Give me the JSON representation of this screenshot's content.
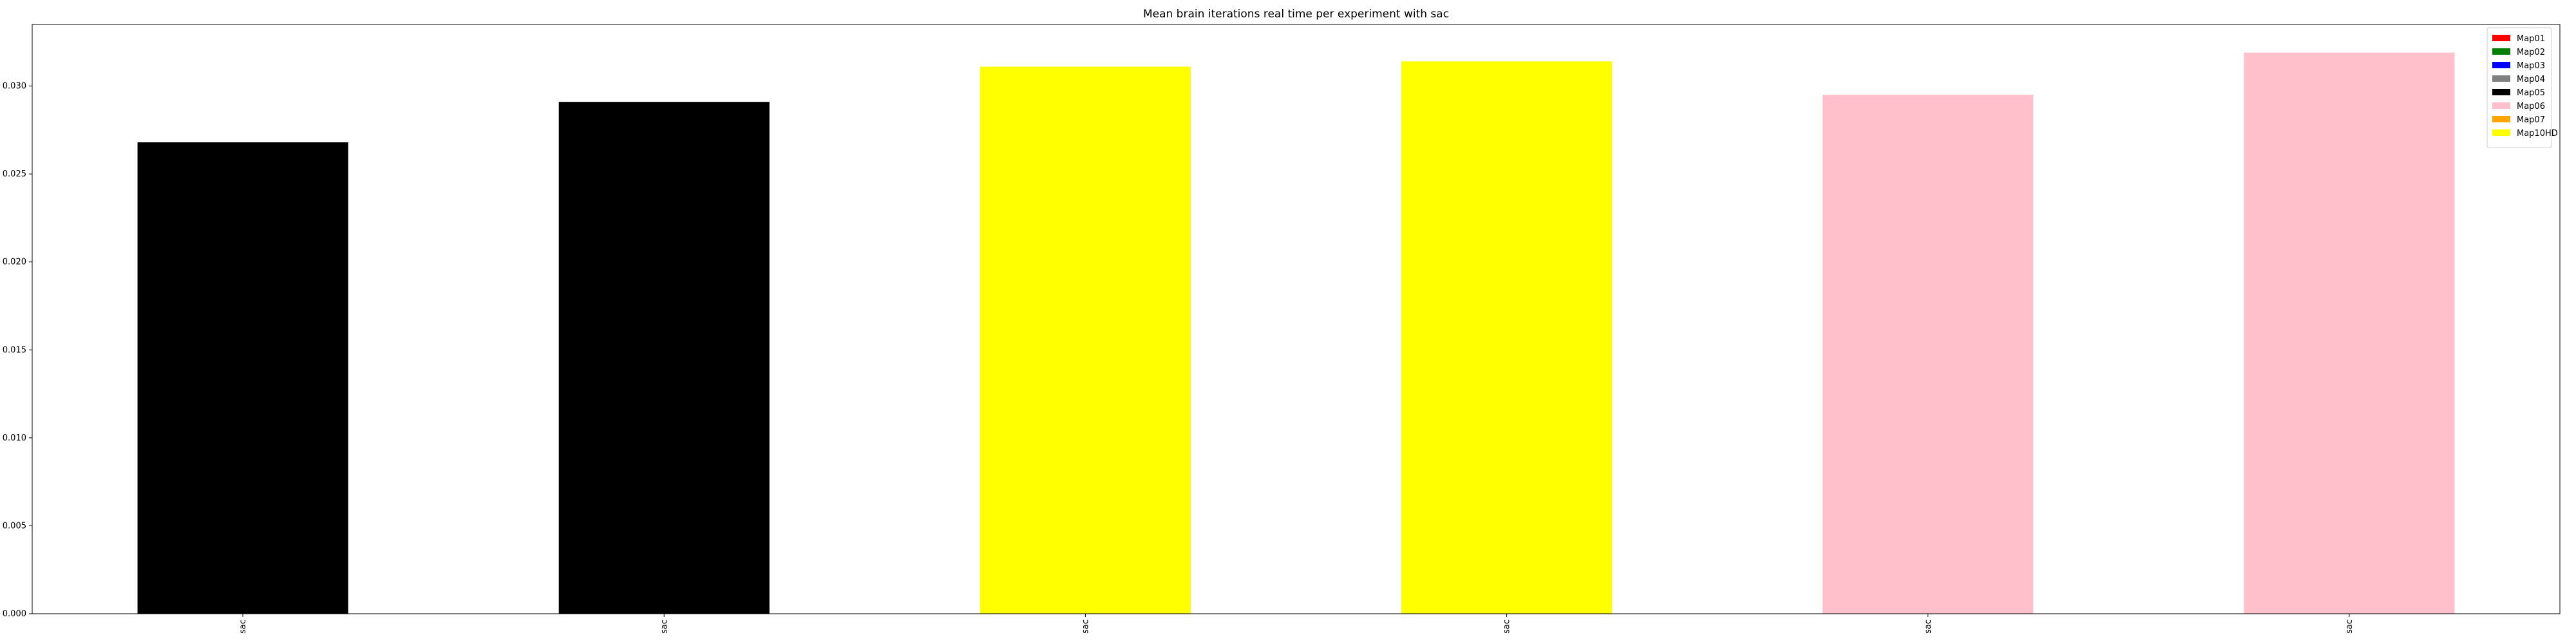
{
  "chart_data": {
    "type": "bar",
    "title": "Mean brain iterations real time per experiment with sac",
    "xlabel": "",
    "ylabel": "",
    "categories": [
      "sac",
      "sac",
      "sac",
      "sac",
      "sac",
      "sac"
    ],
    "values": [
      0.0268,
      0.0291,
      0.0311,
      0.0314,
      0.0295,
      0.0319
    ],
    "bar_colors": [
      "#000000",
      "#000000",
      "#ffff00",
      "#ffff00",
      "#ffc0cb",
      "#ffc0cb"
    ],
    "ylim": [
      0,
      0.0335
    ],
    "yticks": [
      0.0,
      0.005,
      0.01,
      0.015,
      0.02,
      0.025,
      0.03
    ],
    "ytick_labels": [
      "0.000",
      "0.005",
      "0.010",
      "0.015",
      "0.020",
      "0.025",
      "0.030"
    ],
    "grid": false,
    "legend_position": "top-right",
    "legend": [
      {
        "label": "Map01",
        "color": "#ff0000"
      },
      {
        "label": "Map02",
        "color": "#008000"
      },
      {
        "label": "Map03",
        "color": "#0000ff"
      },
      {
        "label": "Map04",
        "color": "#808080"
      },
      {
        "label": "Map05",
        "color": "#000000"
      },
      {
        "label": "Map06",
        "color": "#ffc0cb"
      },
      {
        "label": "Map07",
        "color": "#ffa500"
      },
      {
        "label": "Map10HD",
        "color": "#ffff00"
      }
    ]
  }
}
